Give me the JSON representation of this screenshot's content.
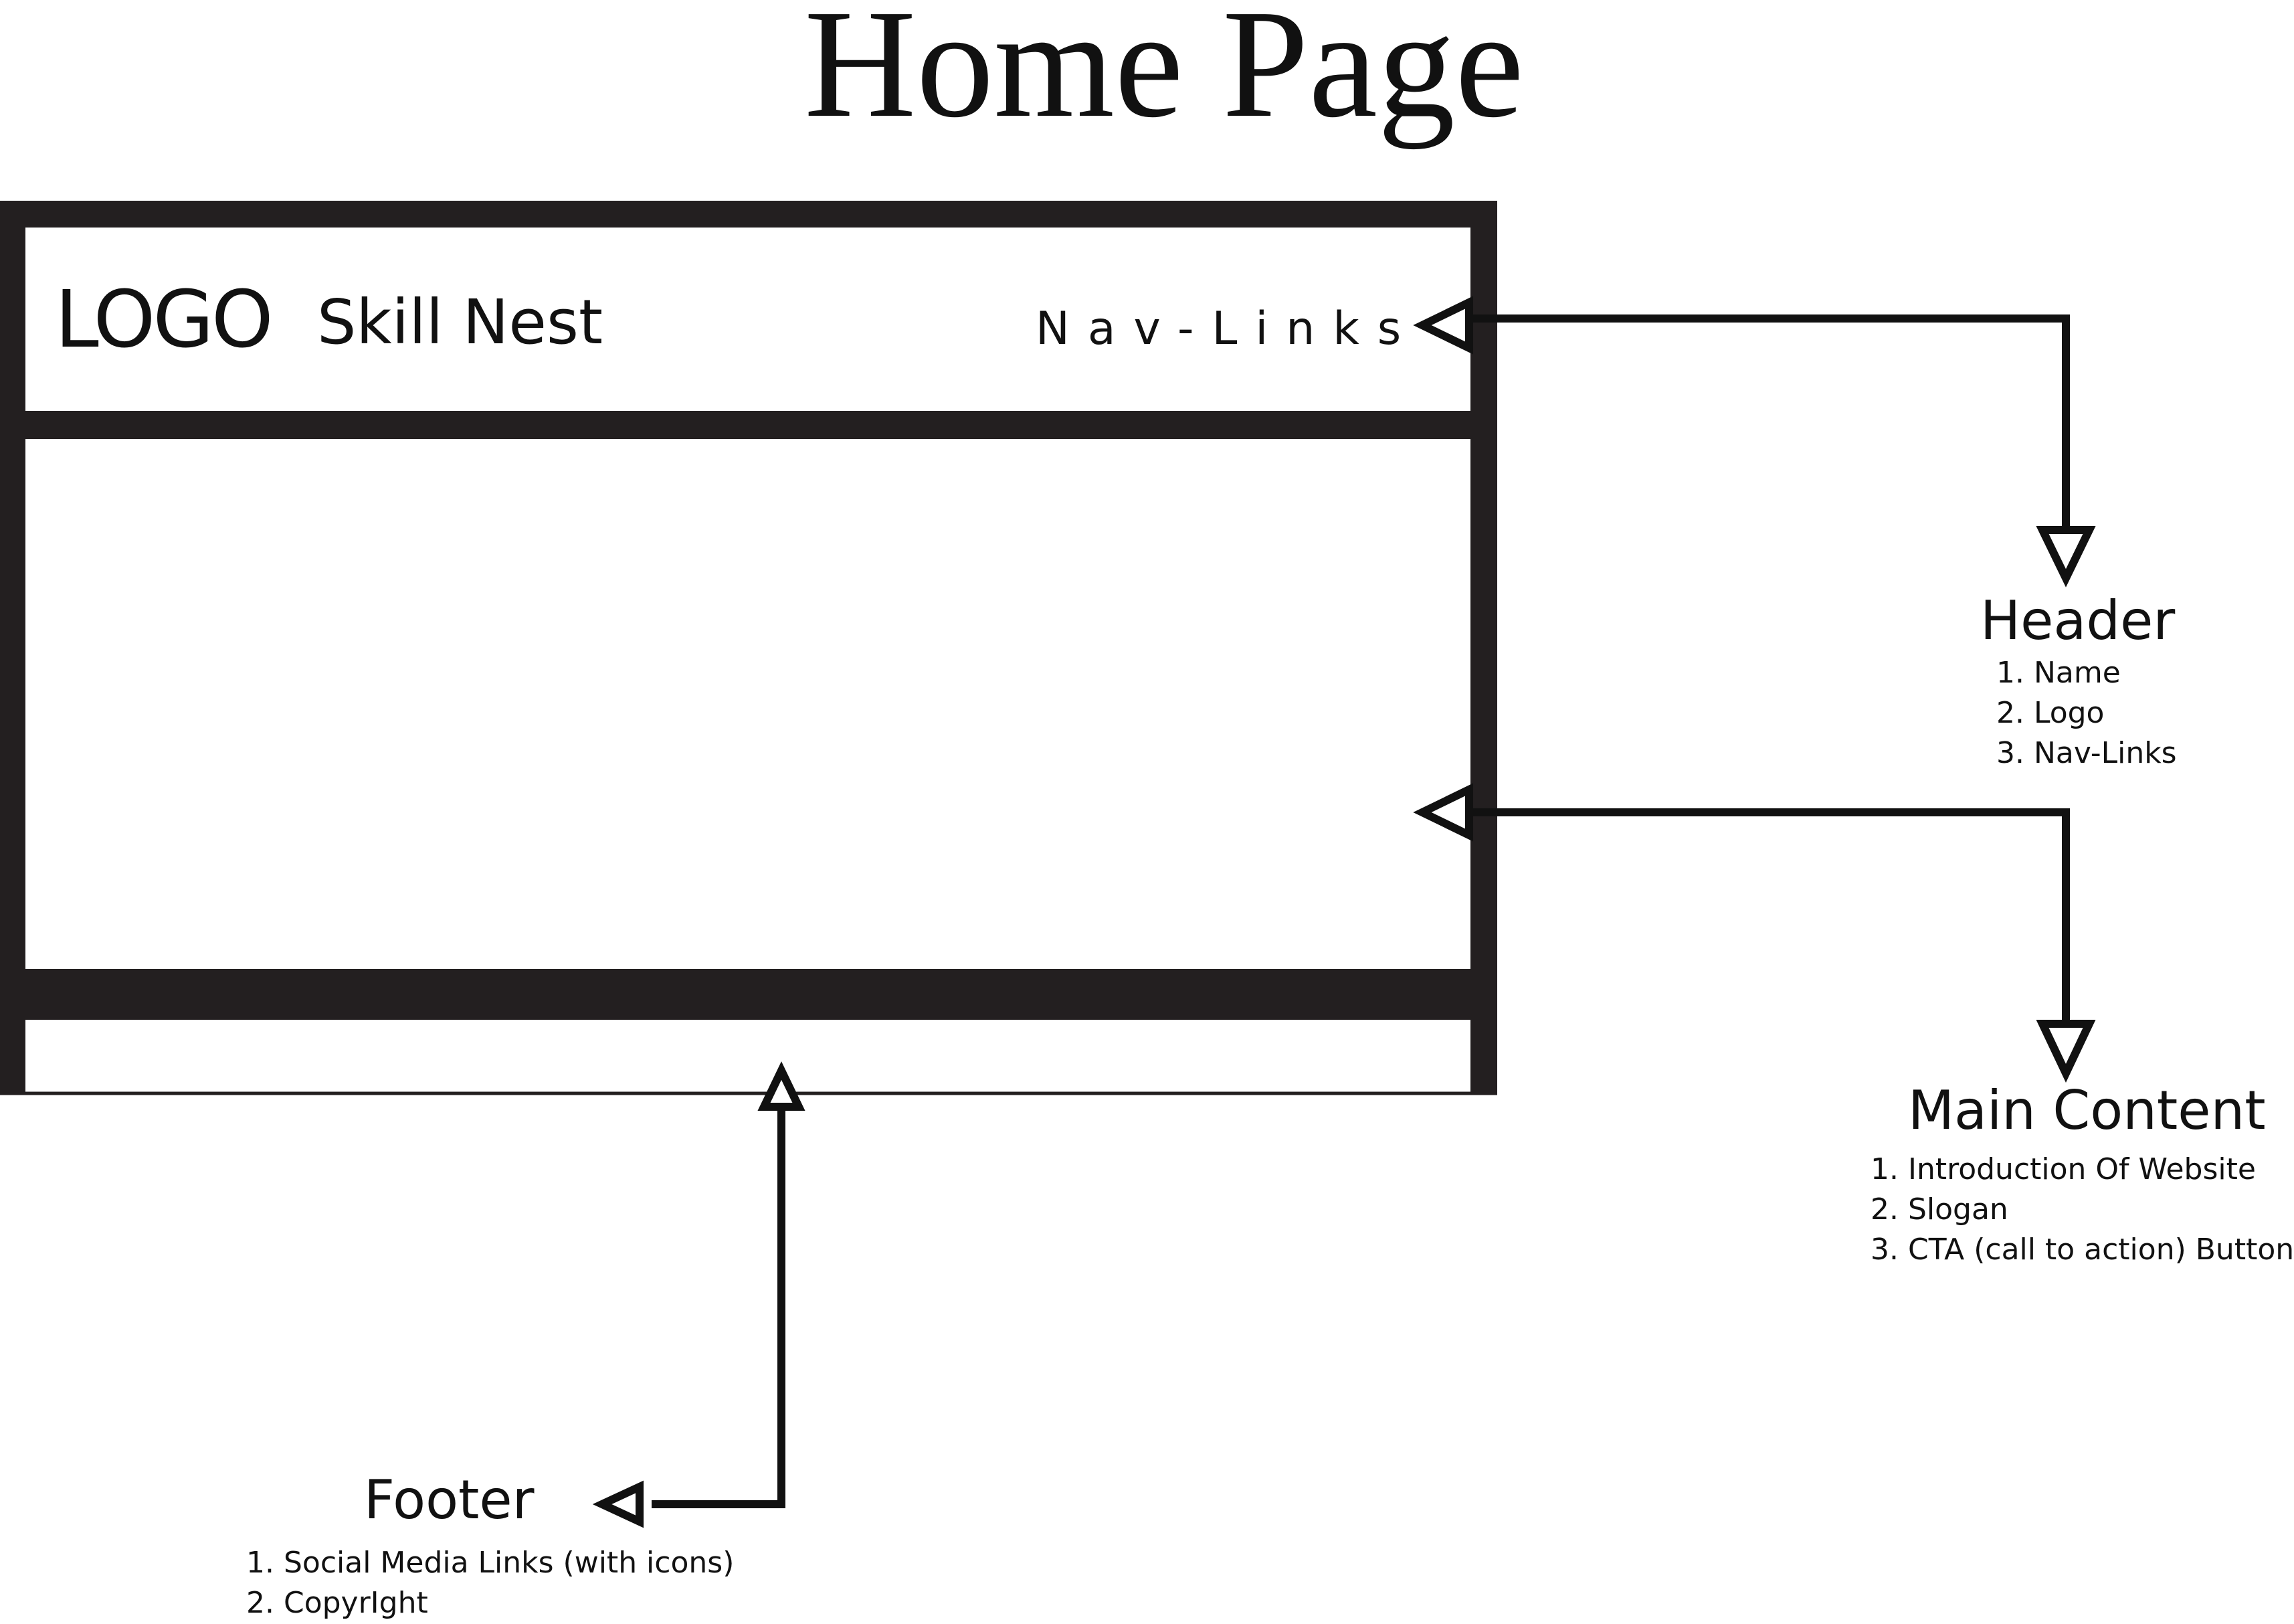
{
  "title": "Home Page",
  "wireframe": {
    "logo": "LOGO",
    "site_name": "Skill Nest",
    "nav_links": "Nav-Links"
  },
  "annotations": {
    "header": {
      "title": "Header",
      "items": [
        "1. Name",
        "2. Logo",
        "3. Nav-Links"
      ]
    },
    "main_content": {
      "title": "Main Content",
      "items": [
        "1. Introduction Of Website",
        "2. Slogan",
        "3. CTA (call to action) Button"
      ]
    },
    "footer": {
      "title": "Footer",
      "items": [
        "1. Social Media Links (with icons)",
        "2. CopyrIght"
      ]
    }
  },
  "colors": {
    "ink": "#231f20",
    "background": "#ffffff"
  }
}
